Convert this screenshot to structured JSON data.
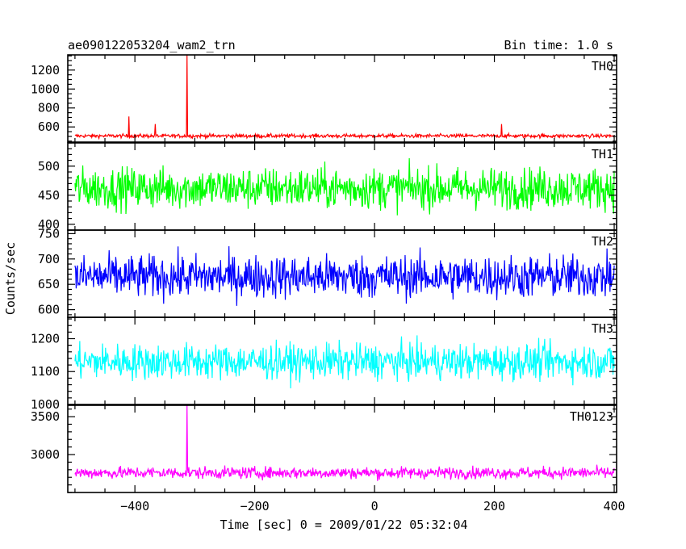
{
  "header": {
    "title": "ae090122053204_wam2_trn",
    "bin_time": "Bin time: 1.0 s"
  },
  "chart_data": {
    "type": "line",
    "xlabel": "Time [sec] 0 = 2009/01/22 05:32:04",
    "ylabel": "Counts/sec",
    "xlim": [
      -512,
      404
    ],
    "x_start": -500,
    "x_end": 400,
    "x_step": 1,
    "x_ticks": [
      -400,
      -200,
      0,
      200,
      400
    ],
    "x_tick_labels": [
      "−400",
      "−200",
      "0",
      "200",
      "400"
    ],
    "x_minor_step": 50,
    "panels": [
      {
        "name": "TH0",
        "color": "#ff0000",
        "ylim": [
          440,
          1360
        ],
        "y_ticks": [
          600,
          800,
          1000,
          1200
        ],
        "y_minor_step": 50,
        "mean": 505,
        "noise": 14,
        "spikes": [
          {
            "x": -313,
            "y": 1360
          },
          {
            "x": -410,
            "y": 710
          },
          {
            "x": -366,
            "y": 630
          },
          {
            "x": 212,
            "y": 630
          }
        ]
      },
      {
        "name": "TH1",
        "color": "#00ff00",
        "ylim": [
          390,
          540
        ],
        "y_ticks": [
          400,
          450,
          500
        ],
        "y_minor_step": 10,
        "mean": 462,
        "noise": 25,
        "spikes": []
      },
      {
        "name": "TH2",
        "color": "#0000ff",
        "ylim": [
          585,
          757
        ],
        "y_ticks": [
          600,
          650,
          700,
          750
        ],
        "y_minor_step": 10,
        "mean": 665,
        "noise": 30,
        "spikes": []
      },
      {
        "name": "TH3",
        "color": "#00ffff",
        "ylim": [
          1000,
          1265
        ],
        "y_ticks": [
          1000,
          1100,
          1200
        ],
        "y_minor_step": 20,
        "mean": 1130,
        "noise": 38,
        "spikes": []
      },
      {
        "name": "TH0123",
        "color": "#ff00ff",
        "ylim": [
          2500,
          3650
        ],
        "y_ticks": [
          3000,
          3500
        ],
        "y_minor_step": 100,
        "mean": 2760,
        "noise": 55,
        "spikes": [
          {
            "x": -313,
            "y": 3650
          }
        ]
      }
    ]
  }
}
